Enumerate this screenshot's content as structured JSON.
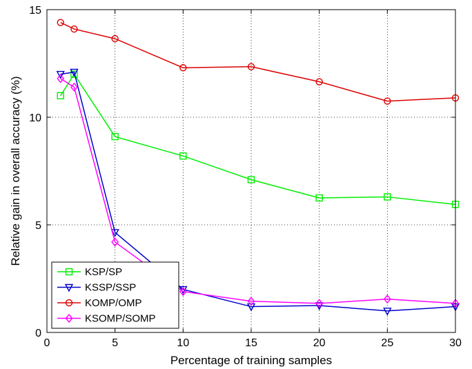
{
  "chart_data": {
    "type": "line",
    "xlabel": "Percentage of training samples",
    "ylabel": "Relative gain in overall accuracy (%)",
    "xlim": [
      0,
      30
    ],
    "ylim": [
      0,
      15
    ],
    "xticks": [
      0,
      5,
      10,
      15,
      20,
      25,
      30
    ],
    "yticks": [
      0,
      5,
      10,
      15
    ],
    "grid": true,
    "grid_style": "dotted",
    "legend_position": "bottom-left",
    "x": [
      1,
      2,
      5,
      10,
      15,
      20,
      25,
      30
    ],
    "series": [
      {
        "name": "KSP/SP",
        "color": "#00ee00",
        "marker": "square",
        "values": [
          11.0,
          12.0,
          9.1,
          8.2,
          7.1,
          6.25,
          6.3,
          5.95
        ]
      },
      {
        "name": "KSSP/SSP",
        "color": "#0000cc",
        "marker": "triangle-down",
        "values": [
          12.0,
          12.1,
          4.65,
          2.0,
          1.2,
          1.25,
          1.0,
          1.2
        ]
      },
      {
        "name": "KOMP/OMP",
        "color": "#dd0000",
        "marker": "circle",
        "values": [
          14.4,
          14.1,
          13.65,
          12.3,
          12.35,
          11.65,
          10.75,
          10.9
        ]
      },
      {
        "name": "KSOMP/SOMP",
        "color": "#ff00ff",
        "marker": "diamond",
        "values": [
          11.8,
          11.4,
          4.2,
          1.9,
          1.45,
          1.35,
          1.55,
          1.35
        ]
      }
    ]
  }
}
